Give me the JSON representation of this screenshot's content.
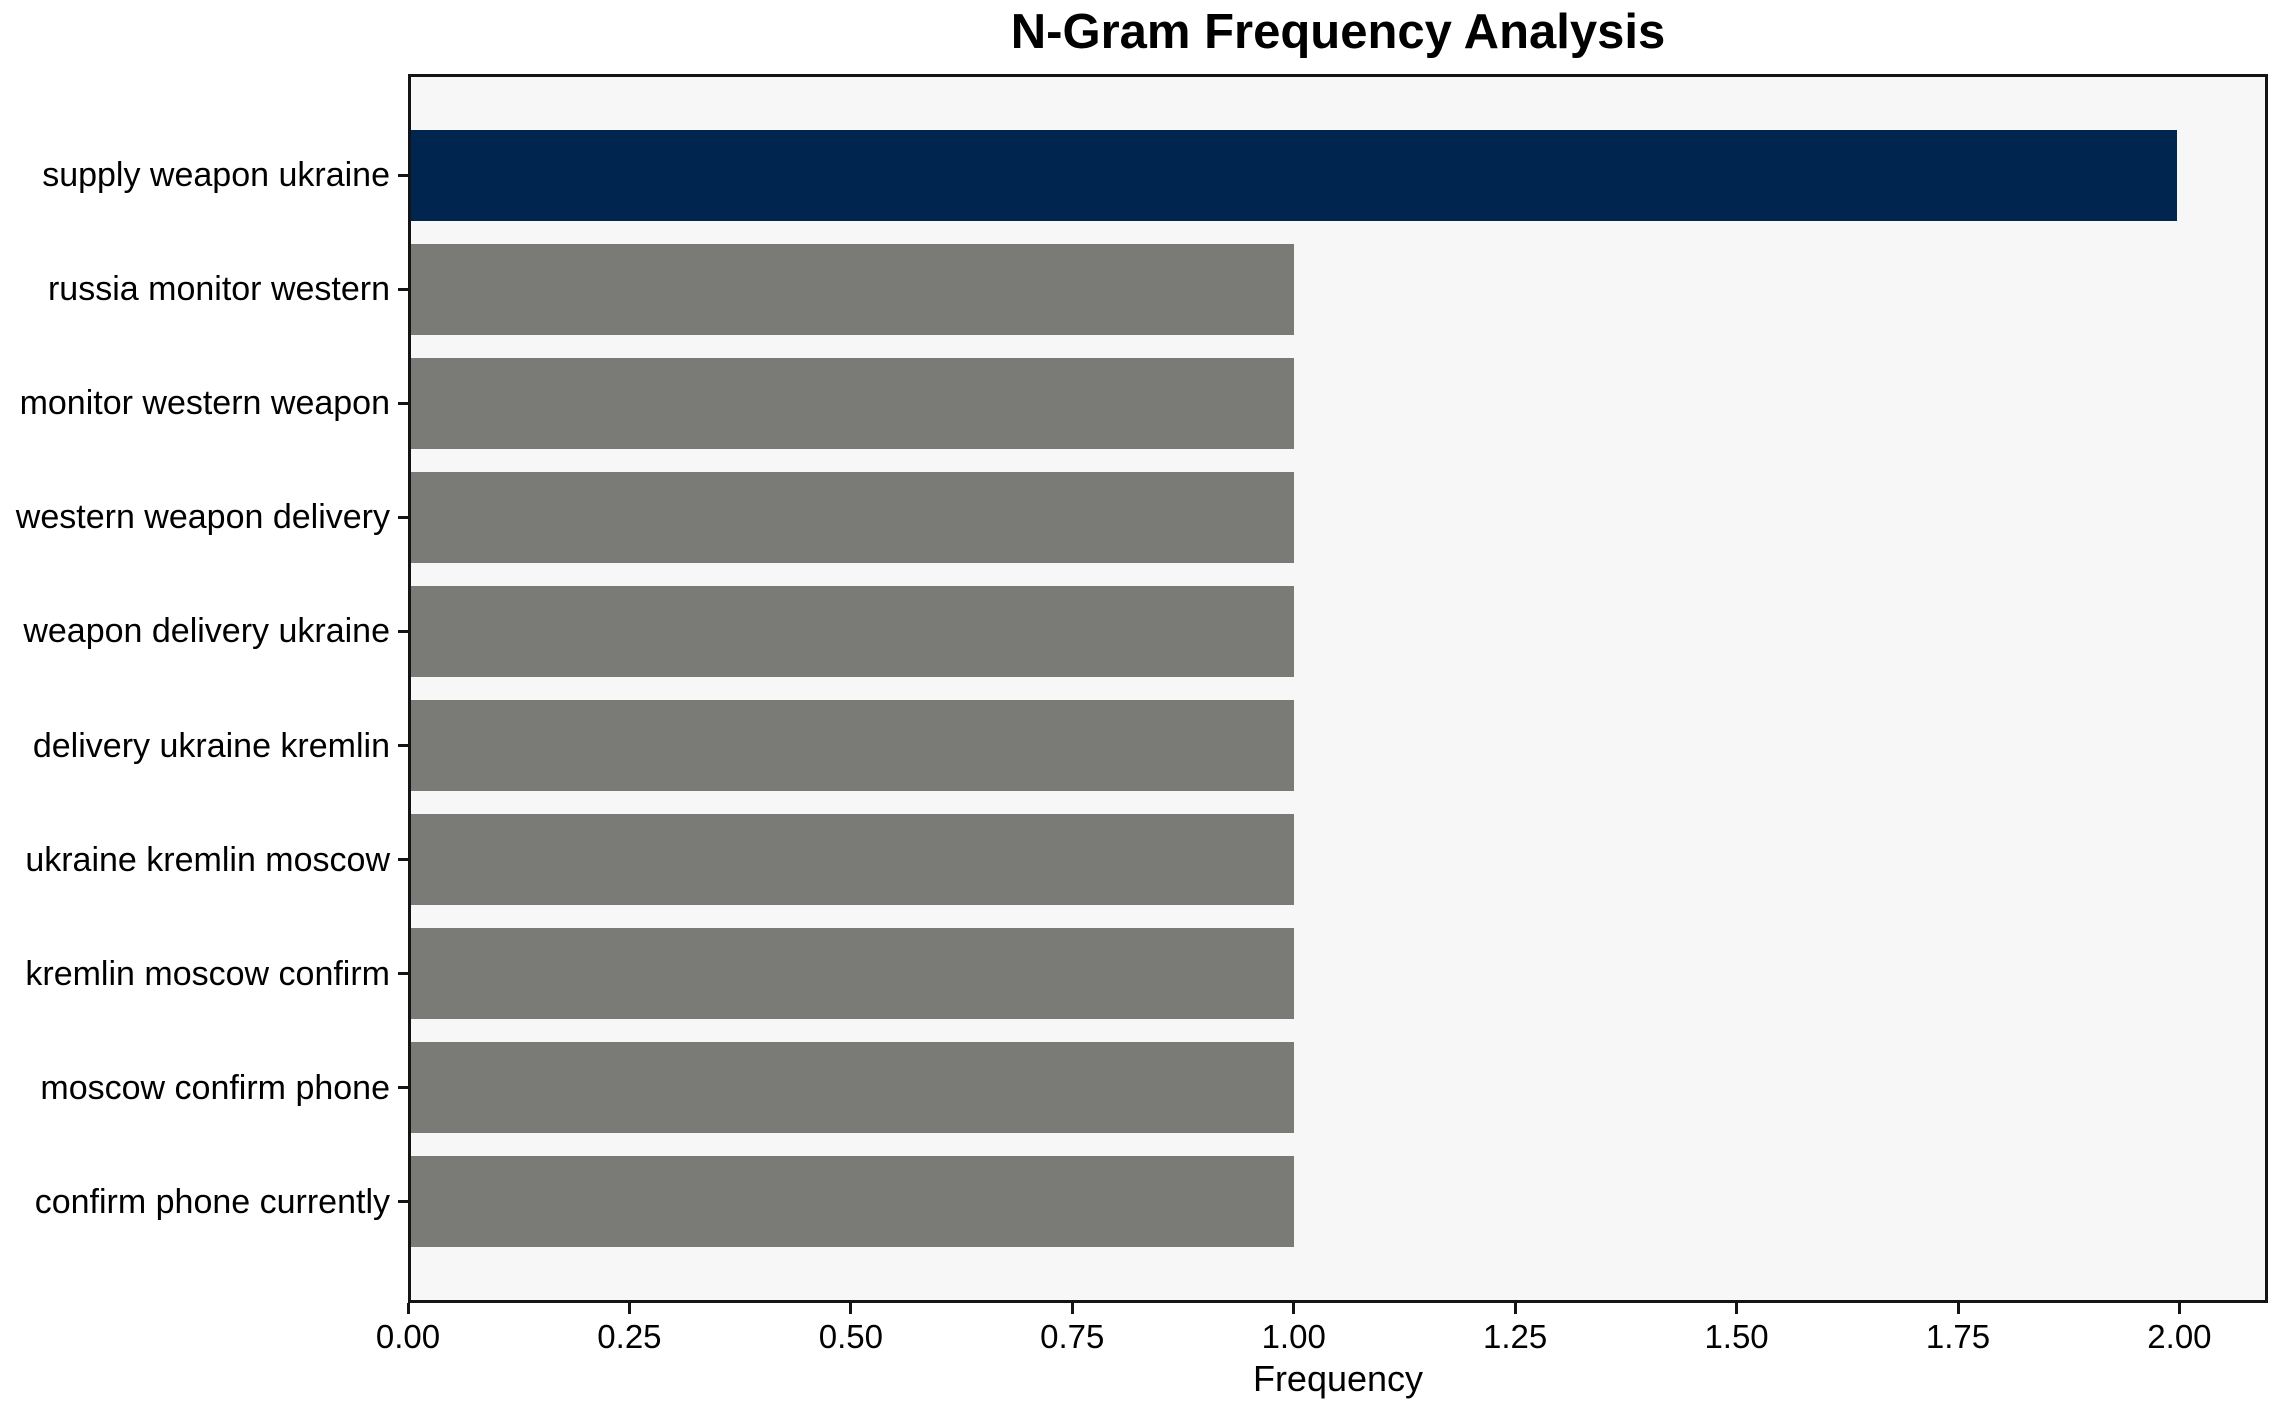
{
  "chart_data": {
    "type": "bar",
    "orientation": "horizontal",
    "title": "N-Gram Frequency Analysis",
    "xlabel": "Frequency",
    "ylabel": "",
    "categories": [
      "supply weapon ukraine",
      "russia monitor western",
      "monitor western weapon",
      "western weapon delivery",
      "weapon delivery ukraine",
      "delivery ukraine kremlin",
      "ukraine kremlin moscow",
      "kremlin moscow confirm",
      "moscow confirm phone",
      "confirm phone currently"
    ],
    "values": [
      2,
      1,
      1,
      1,
      1,
      1,
      1,
      1,
      1,
      1
    ],
    "bar_colors": [
      "#00254e",
      "#7a7a76",
      "#7a7a76",
      "#7a7a76",
      "#7a7a76",
      "#7a7a76",
      "#7a7a76",
      "#7a7a76",
      "#7a7a76",
      "#7a7a76"
    ],
    "xlim": [
      0,
      2.1
    ],
    "xticks": [
      0,
      0.25,
      0.5,
      0.75,
      1.0,
      1.25,
      1.5,
      1.75,
      2.0
    ],
    "xtick_labels": [
      "0.00",
      "0.25",
      "0.50",
      "0.75",
      "1.00",
      "1.25",
      "1.50",
      "1.75",
      "2.00"
    ],
    "grid": false,
    "legend_position": "none",
    "plot_background": "#f7f7f7",
    "figure_background": "#ffffff",
    "highlight_color": "#00254e",
    "default_bar_color": "#7a7a76"
  }
}
